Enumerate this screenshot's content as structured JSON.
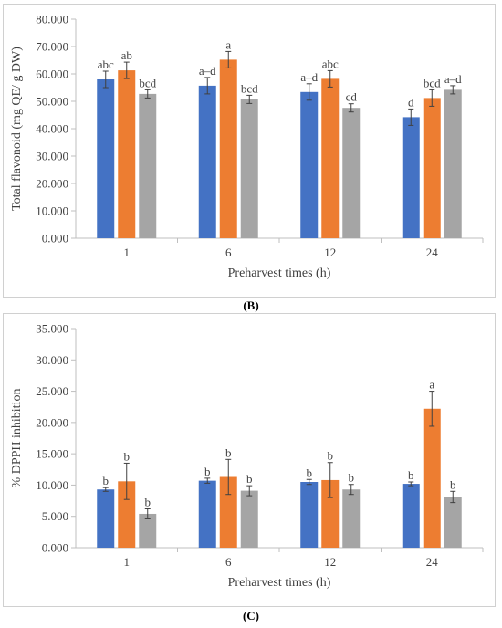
{
  "colors": {
    "series1": "#4472c4",
    "series2": "#ed7d31",
    "series3": "#a5a5a5",
    "axis": "#bfbfbf",
    "errorbar": "#404040"
  },
  "chart_data": [
    {
      "type": "bar",
      "caption": "",
      "xlabel": "Preharvest times (h)",
      "ylabel": "Total flavonoid (mg QE/ g DW)",
      "categories": [
        "1",
        "6",
        "12",
        "24"
      ],
      "ylim": [
        0,
        80
      ],
      "yticks": [
        "0.000",
        "10.000",
        "20.000",
        "30.000",
        "40.000",
        "50.000",
        "60.000",
        "70.000",
        "80.000"
      ],
      "grid": false,
      "series": [
        {
          "values": [
            58.0,
            55.7,
            53.4,
            44.2
          ],
          "errors": [
            3.0,
            3.0,
            3.0,
            3.0
          ],
          "labels": [
            "abc",
            "a–d",
            "a–d",
            "d"
          ]
        },
        {
          "values": [
            61.3,
            65.2,
            58.2,
            51.2
          ],
          "errors": [
            3.0,
            3.0,
            3.0,
            3.0
          ],
          "labels": [
            "ab",
            "a",
            "abc",
            "bcd"
          ]
        },
        {
          "values": [
            52.7,
            50.7,
            47.6,
            54.2
          ],
          "errors": [
            1.5,
            1.5,
            1.5,
            1.5
          ],
          "labels": [
            "bcd",
            "bcd",
            "cd",
            "a–d"
          ]
        }
      ]
    },
    {
      "type": "bar",
      "caption": "(B)",
      "xlabel": "Preharvest times (h)",
      "ylabel": "% DPPH inhibition",
      "categories": [
        "1",
        "6",
        "12",
        "24"
      ],
      "ylim": [
        0,
        35
      ],
      "yticks": [
        "0.000",
        "5.000",
        "10.000",
        "15.000",
        "20.000",
        "25.000",
        "30.000",
        "35.000"
      ],
      "grid": false,
      "series": [
        {
          "values": [
            9.3,
            10.7,
            10.5,
            10.2
          ],
          "errors": [
            0.3,
            0.4,
            0.4,
            0.3
          ],
          "labels": [
            "b",
            "b",
            "b",
            "b"
          ]
        },
        {
          "values": [
            10.6,
            11.3,
            10.8,
            22.2
          ],
          "errors": [
            2.9,
            2.8,
            2.8,
            2.8
          ],
          "labels": [
            "b",
            "b",
            "b",
            "a"
          ]
        },
        {
          "values": [
            5.4,
            9.1,
            9.3,
            8.1
          ],
          "errors": [
            0.8,
            0.8,
            0.8,
            0.9
          ],
          "labels": [
            "b",
            "b",
            "b",
            "b"
          ]
        }
      ]
    }
  ],
  "bottom_caption": "(C)"
}
